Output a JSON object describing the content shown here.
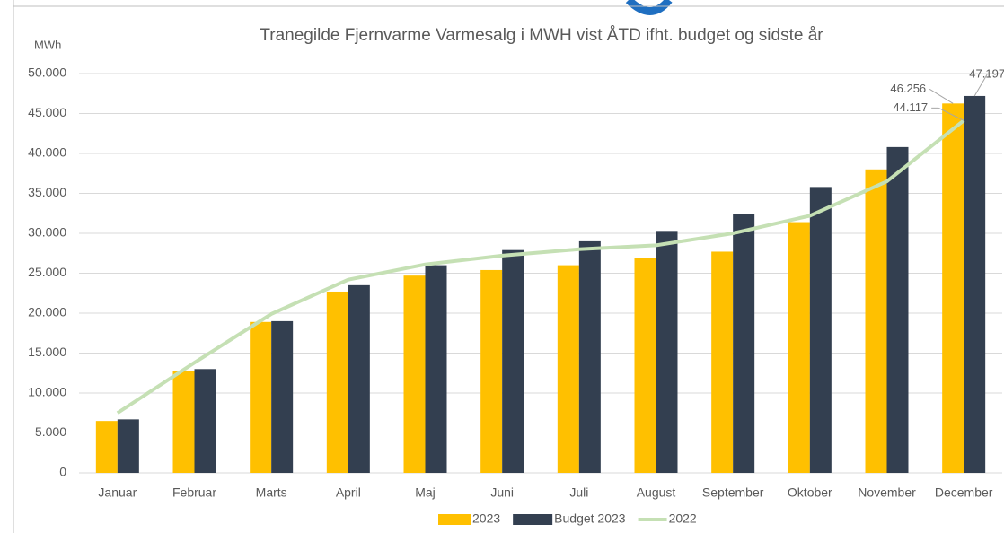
{
  "chart_data": {
    "type": "bar",
    "title": "Tranegilde Fjernvarme Varmesalg i MWH vist ÅTD ifht. budget og sidste år",
    "y_axis_label": "MWh",
    "categories": [
      "Januar",
      "Februar",
      "Marts",
      "April",
      "Maj",
      "Juni",
      "Juli",
      "August",
      "September",
      "Oktober",
      "November",
      "December"
    ],
    "series": [
      {
        "name": "2023",
        "type": "bar",
        "color": "#FFC000",
        "values": [
          6500,
          12700,
          18900,
          22700,
          24700,
          25400,
          26000,
          26900,
          27700,
          31400,
          38000,
          46256
        ],
        "value_labels": [
          null,
          null,
          null,
          null,
          null,
          null,
          null,
          null,
          null,
          null,
          null,
          "46.256"
        ]
      },
      {
        "name": "Budget 2023",
        "type": "bar",
        "color": "#333F50",
        "values": [
          6700,
          13000,
          19000,
          23500,
          26000,
          27900,
          29000,
          30300,
          32400,
          35800,
          40800,
          47197
        ],
        "value_labels": [
          null,
          null,
          null,
          null,
          null,
          null,
          null,
          null,
          null,
          null,
          null,
          "47.197"
        ]
      },
      {
        "name": "2022",
        "type": "line",
        "color": "#C5E0B4",
        "values": [
          7500,
          13800,
          19900,
          24200,
          26100,
          27200,
          28000,
          28500,
          30000,
          32200,
          36500,
          44117
        ],
        "value_labels": [
          null,
          null,
          null,
          null,
          null,
          null,
          null,
          null,
          null,
          null,
          null,
          "44.117"
        ]
      }
    ],
    "ylim": [
      0,
      50000
    ],
    "yticks": [
      0,
      {
        "value": 5000,
        "label": "5.000"
      },
      {
        "value": 10000,
        "label": "10.000"
      },
      {
        "value": 15000,
        "label": "15.000"
      },
      {
        "value": 20000,
        "label": "20.000"
      },
      {
        "value": 25000,
        "label": "25.000"
      },
      {
        "value": 30000,
        "label": "30.000"
      },
      {
        "value": 35000,
        "label": "35.000"
      },
      {
        "value": 40000,
        "label": "40.000"
      },
      {
        "value": 45000,
        "label": "45.000"
      },
      {
        "value": 50000,
        "label": "50.000"
      }
    ],
    "grid": true,
    "legend": "bottom"
  }
}
